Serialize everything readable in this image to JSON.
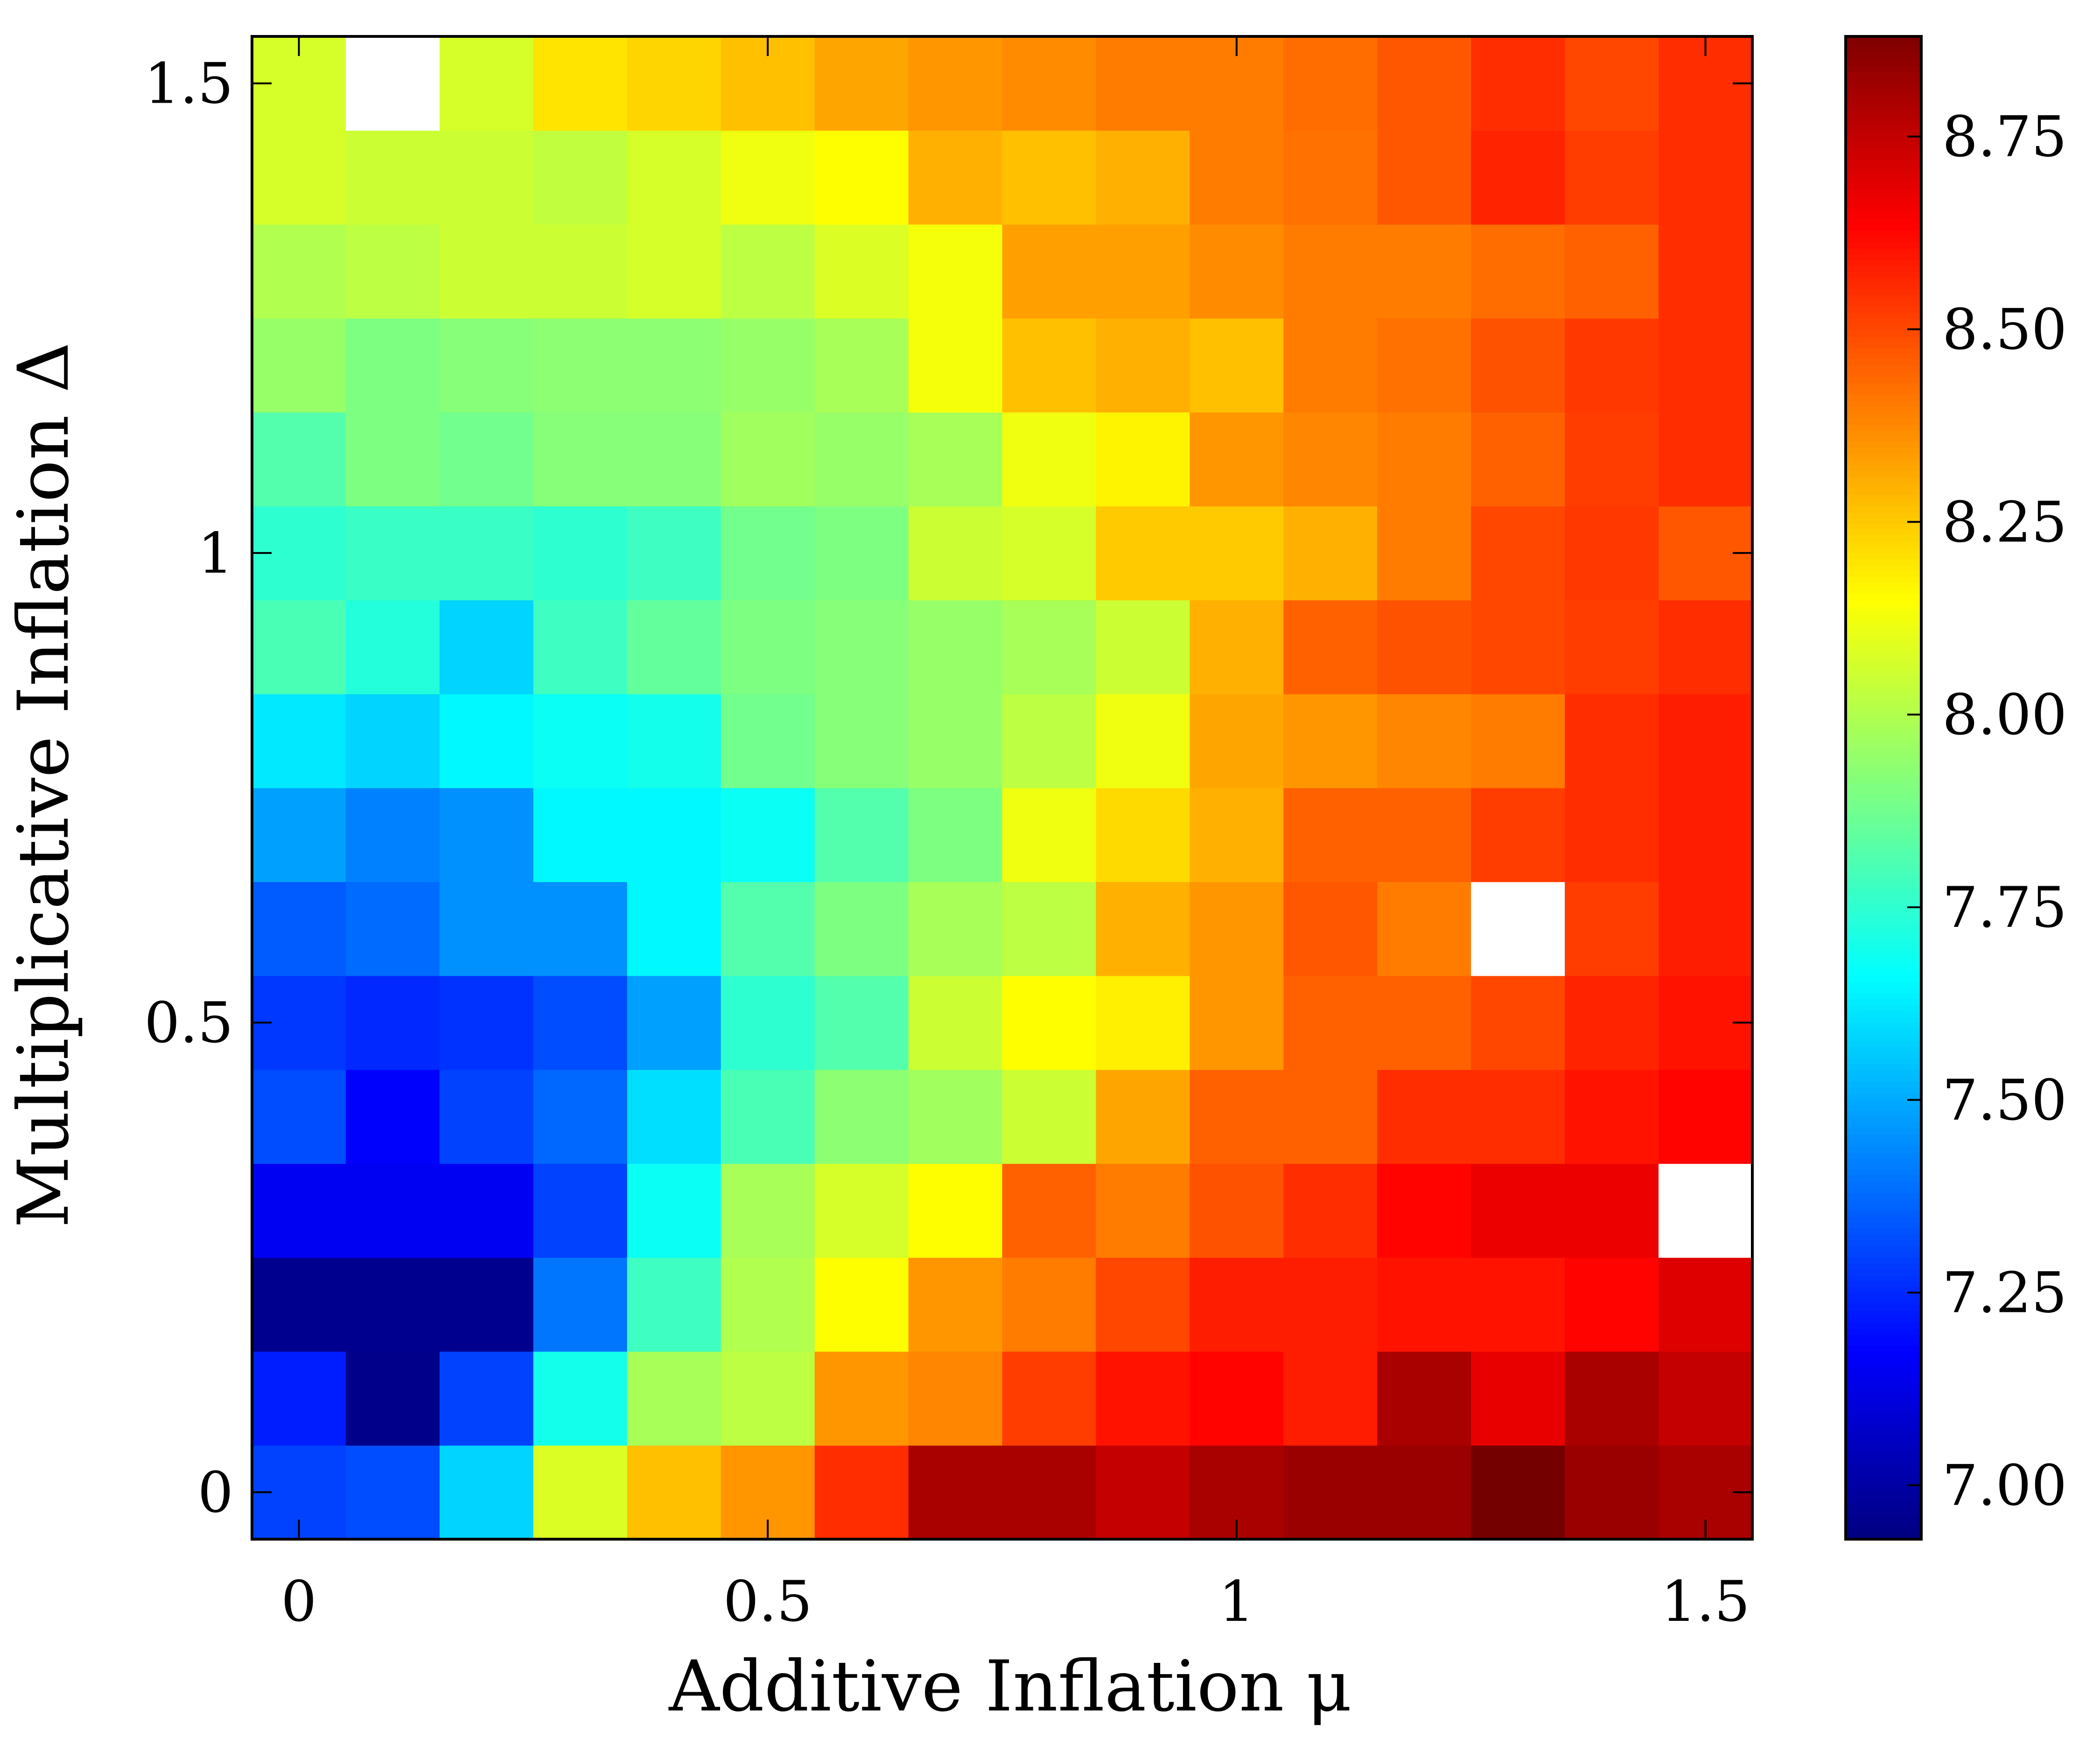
{
  "chart_data": {
    "type": "heatmap",
    "xlabel": "Additive Inflation μ",
    "ylabel": "Multiplicative Inflation Δ",
    "x": [
      0,
      0.1,
      0.2,
      0.3,
      0.4,
      0.5,
      0.6,
      0.7,
      0.8,
      0.9,
      1.0,
      1.1,
      1.2,
      1.3,
      1.4,
      1.5
    ],
    "y": [
      0,
      0.1,
      0.2,
      0.3,
      0.4,
      0.5,
      0.6,
      0.7,
      0.8,
      0.9,
      1.0,
      1.1,
      1.2,
      1.3,
      1.4,
      1.5
    ],
    "xlim": [
      -0.05,
      1.55
    ],
    "ylim": [
      -0.05,
      1.55
    ],
    "x_ticks": [
      0,
      0.5,
      1,
      1.5
    ],
    "x_tick_labels": [
      "0",
      "0.5",
      "1",
      "1.5"
    ],
    "y_ticks": [
      0,
      0.5,
      1,
      1.5
    ],
    "y_tick_labels": [
      "0",
      "0.5",
      "1",
      "1.5"
    ],
    "colorbar": {
      "colormap": "jet",
      "vmin": 6.93,
      "vmax": 8.88,
      "ticks": [
        7.0,
        7.25,
        7.5,
        7.75,
        8.0,
        8.25,
        8.5,
        8.75
      ],
      "tick_labels": [
        "7.00",
        "7.25",
        "7.50",
        "7.75",
        "8.00",
        "8.25",
        "8.50",
        "8.75"
      ]
    },
    "missing_color": "#ffffff",
    "z_note_rows_bottom_to_top": true,
    "z": [
      [
        7.3,
        7.32,
        7.58,
        8.08,
        8.27,
        8.35,
        8.55,
        8.8,
        8.8,
        8.75,
        8.8,
        8.83,
        8.83,
        8.9,
        8.83,
        8.8
      ],
      [
        7.23,
        6.95,
        7.3,
        7.7,
        7.98,
        8.02,
        8.35,
        8.38,
        8.52,
        8.6,
        8.63,
        8.58,
        8.8,
        8.68,
        8.8,
        8.75
      ],
      [
        6.96,
        6.96,
        6.96,
        7.4,
        7.78,
        8.0,
        8.15,
        8.35,
        8.4,
        8.5,
        8.58,
        8.58,
        8.6,
        8.6,
        8.63,
        8.7
      ],
      [
        7.15,
        7.15,
        7.15,
        7.3,
        7.68,
        7.98,
        8.07,
        8.15,
        8.45,
        8.4,
        8.48,
        8.55,
        8.63,
        8.67,
        8.67,
        null
      ],
      [
        7.32,
        7.17,
        7.3,
        7.37,
        7.6,
        7.8,
        7.93,
        7.97,
        8.05,
        8.32,
        8.45,
        8.45,
        8.55,
        8.55,
        8.6,
        8.63
      ],
      [
        7.28,
        7.25,
        7.27,
        7.32,
        7.48,
        7.75,
        7.82,
        8.05,
        8.15,
        8.18,
        8.35,
        8.45,
        8.45,
        8.5,
        8.57,
        8.6
      ],
      [
        7.35,
        7.38,
        7.45,
        7.45,
        7.65,
        7.82,
        7.9,
        7.98,
        8.02,
        8.3,
        8.35,
        8.47,
        8.4,
        null,
        8.52,
        8.58
      ],
      [
        7.48,
        7.42,
        7.45,
        7.65,
        7.65,
        7.68,
        7.82,
        7.9,
        8.12,
        8.22,
        8.3,
        8.45,
        8.45,
        8.52,
        8.55,
        8.58
      ],
      [
        7.62,
        7.58,
        7.65,
        7.68,
        7.7,
        7.88,
        7.92,
        7.95,
        8.02,
        8.12,
        8.32,
        8.35,
        8.38,
        8.4,
        8.55,
        8.58
      ],
      [
        7.8,
        7.73,
        7.58,
        7.78,
        7.85,
        7.9,
        7.92,
        7.95,
        7.98,
        8.05,
        8.3,
        8.45,
        8.48,
        8.5,
        8.52,
        8.55
      ],
      [
        7.75,
        7.77,
        7.77,
        7.75,
        7.78,
        7.88,
        7.9,
        8.05,
        8.07,
        8.25,
        8.25,
        8.3,
        8.4,
        8.5,
        8.53,
        8.47
      ],
      [
        7.82,
        7.9,
        7.88,
        7.92,
        7.92,
        7.97,
        7.95,
        7.98,
        8.12,
        8.17,
        8.35,
        8.38,
        8.4,
        8.45,
        8.52,
        8.55
      ],
      [
        7.95,
        7.9,
        7.92,
        7.93,
        7.93,
        7.95,
        7.98,
        8.13,
        8.27,
        8.3,
        8.27,
        8.4,
        8.42,
        8.48,
        8.53,
        8.55
      ],
      [
        8.0,
        8.02,
        8.05,
        8.05,
        8.07,
        8.02,
        8.08,
        8.13,
        8.33,
        8.33,
        8.37,
        8.4,
        8.4,
        8.43,
        8.45,
        8.55
      ],
      [
        8.07,
        8.05,
        8.05,
        8.03,
        8.07,
        8.12,
        8.15,
        8.3,
        8.27,
        8.3,
        8.4,
        8.42,
        8.47,
        8.57,
        8.52,
        8.55
      ],
      [
        8.07,
        null,
        8.07,
        8.2,
        8.23,
        8.27,
        8.32,
        8.35,
        8.37,
        8.4,
        8.4,
        8.43,
        8.47,
        8.55,
        8.5,
        8.55
      ]
    ]
  }
}
